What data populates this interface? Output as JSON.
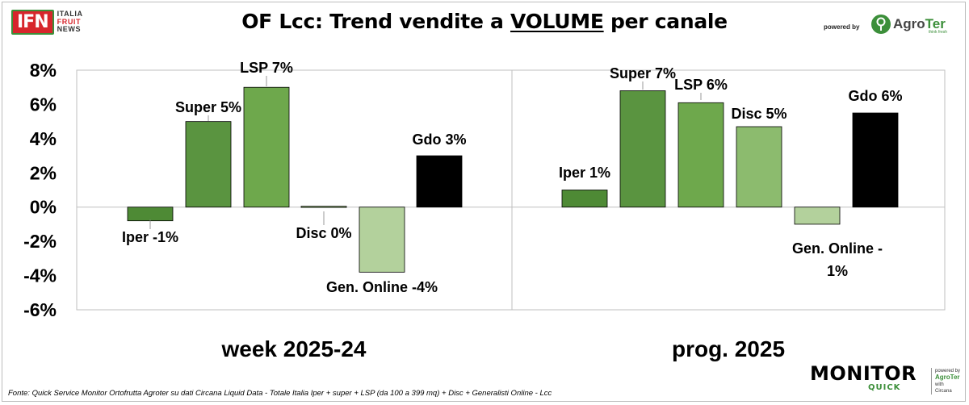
{
  "header": {
    "title_pre": "OF Lcc: Trend vendite a ",
    "title_underlined": "VOLUME",
    "title_post": " per canale",
    "ifn_logo": {
      "mark": "IFN",
      "line1": "ITALIA",
      "line2": "FRUIT",
      "line3": "NEWS"
    },
    "powered_by": "powered by",
    "agroter": {
      "agro": "Agro",
      "ter": "Ter",
      "tagline": "think fresh"
    }
  },
  "footer": {
    "source": "Fonte: Quick Service Monitor Ortofrutta Agroter su dati Circana Liquid Data - Totale Italia Iper + super + LSP (da 100 a 399 mq) + Disc + Generalisti Online - Lcc",
    "monitor_logo": {
      "word": "MONITOR",
      "sub": "QUICK"
    },
    "side_note": {
      "l1": "powered by",
      "l2": "AgroTer",
      "l3": "with",
      "l4": "Circana"
    }
  },
  "colors": {
    "iper": "#4e8a35",
    "super": "#5a9440",
    "lsp": "#6ea84c",
    "disc": "#8cbb6e",
    "gen_online": "#b3d19c",
    "gdo": "#000000",
    "accent_green": "#3c8f3a",
    "accent_red": "#d7262c"
  },
  "chart_data": {
    "type": "bar",
    "title": "OF Lcc: Trend vendite a VOLUME per canale",
    "ylim": [
      -6,
      8
    ],
    "yticks": [
      "8%",
      "6%",
      "4%",
      "2%",
      "0%",
      "-2%",
      "-4%",
      "-6%"
    ],
    "grid": false,
    "panels": [
      {
        "label": "week 2025-24",
        "bars": [
          {
            "category": "Iper",
            "value": -0.8,
            "color_key": "iper",
            "label": "Iper -1%"
          },
          {
            "category": "Super",
            "value": 5.0,
            "color_key": "super",
            "label": "Super 5%"
          },
          {
            "category": "LSP",
            "value": 7.0,
            "color_key": "lsp",
            "label": "LSP 7%"
          },
          {
            "category": "Disc",
            "value": 0.05,
            "color_key": "disc",
            "label": "Disc 0%"
          },
          {
            "category": "Gen. Online",
            "value": -3.8,
            "color_key": "gen_online",
            "label": "Gen. Online -4%"
          },
          {
            "category": "Gdo",
            "value": 3.0,
            "color_key": "gdo",
            "label": "Gdo 3%"
          }
        ]
      },
      {
        "label": "prog. 2025",
        "bars": [
          {
            "category": "Iper",
            "value": 1.0,
            "color_key": "iper",
            "label": "Iper 1%"
          },
          {
            "category": "Super",
            "value": 6.8,
            "color_key": "super",
            "label": "Super 7%"
          },
          {
            "category": "LSP",
            "value": 6.1,
            "color_key": "lsp",
            "label": "LSP 6%"
          },
          {
            "category": "Disc",
            "value": 4.7,
            "color_key": "disc",
            "label": "Disc 5%"
          },
          {
            "category": "Gen. Online",
            "value": -1.0,
            "color_key": "gen_online",
            "label": "Gen. Online -\n1%"
          },
          {
            "category": "Gdo",
            "value": 5.5,
            "color_key": "gdo",
            "label": "Gdo 6%"
          }
        ]
      }
    ]
  }
}
